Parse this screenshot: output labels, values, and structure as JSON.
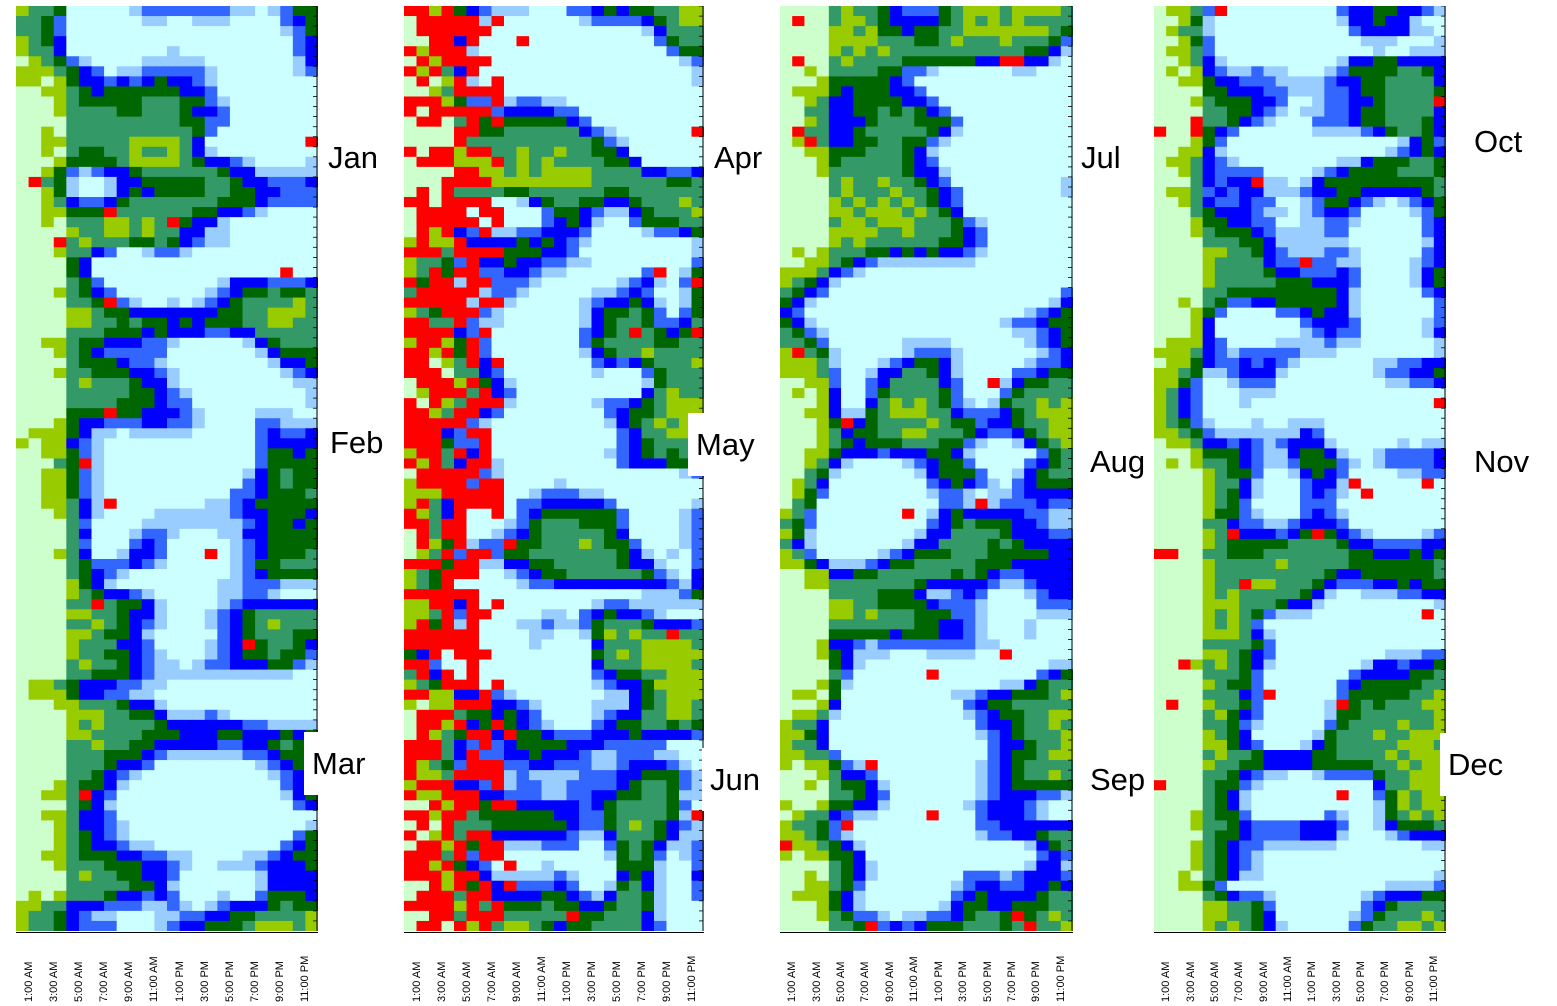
{
  "chart_data": [
    {
      "type": "heatmap",
      "title": "",
      "months": [
        "Jan",
        "Feb",
        "Mar"
      ],
      "x_tick_labels": [
        "1:00 AM",
        "3:00 AM",
        "5:00 AM",
        "7:00 AM",
        "9:00 AM",
        "11:00 AM",
        "1:00 PM",
        "3:00 PM",
        "5:00 PM",
        "7:00 PM",
        "9:00 PM",
        "11:00 PM"
      ],
      "xlabel": "",
      "ylabel": ""
    },
    {
      "type": "heatmap",
      "title": "",
      "months": [
        "Apr",
        "May",
        "Jun"
      ],
      "x_tick_labels": [
        "1:00 AM",
        "3:00 AM",
        "5:00 AM",
        "7:00 AM",
        "9:00 AM",
        "11:00 AM",
        "1:00 PM",
        "3:00 PM",
        "5:00 PM",
        "7:00 PM",
        "9:00 PM",
        "11:00 PM"
      ],
      "xlabel": "",
      "ylabel": ""
    },
    {
      "type": "heatmap",
      "title": "",
      "months": [
        "Jul",
        "Aug",
        "Sep"
      ],
      "x_tick_labels": [
        "1:00 AM",
        "3:00 AM",
        "5:00 AM",
        "7:00 AM",
        "9:00 AM",
        "11:00 AM",
        "1:00 PM",
        "3:00 PM",
        "5:00 PM",
        "7:00 PM",
        "9:00 PM",
        "11:00 PM"
      ],
      "xlabel": "",
      "ylabel": ""
    },
    {
      "type": "heatmap",
      "title": "",
      "months": [
        "Oct",
        "Nov",
        "Dec"
      ],
      "x_tick_labels": [
        "1:00 AM",
        "3:00 AM",
        "5:00 AM",
        "7:00 AM",
        "9:00 AM",
        "11:00 AM",
        "1:00 PM",
        "3:00 PM",
        "5:00 PM",
        "7:00 PM",
        "9:00 PM",
        "11:00 PM"
      ],
      "xlabel": "",
      "ylabel": ""
    }
  ],
  "colors": {
    "level_0": "#ff0000",
    "level_1": "#ccffcc",
    "level_2": "#99cc00",
    "level_3": "#339966",
    "level_4": "#006600",
    "level_5": "#0000ff",
    "level_6": "#3366ff",
    "level_7": "#99ccff",
    "level_8": "#ccffff"
  }
}
